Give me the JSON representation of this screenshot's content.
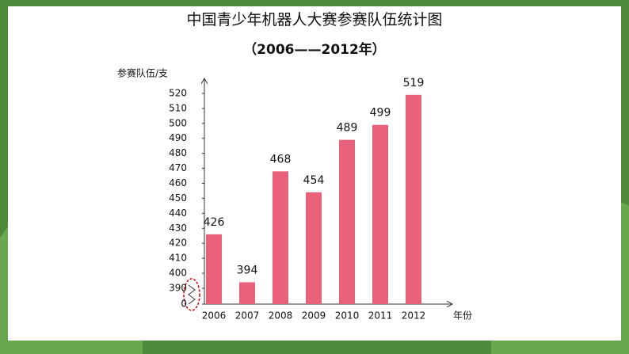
{
  "chart_data": {
    "type": "bar",
    "title": "中国青少年机器人大赛参赛队伍统计图",
    "subtitle": "（2006——2012年）",
    "y_label": "参赛队伍/支",
    "x_label": "年份",
    "categories": [
      "2006",
      "2007",
      "2008",
      "2009",
      "2010",
      "2011",
      "2012"
    ],
    "values": [
      426,
      394,
      468,
      454,
      489,
      499,
      519
    ],
    "color": "#e8607a",
    "ylim": [
      0,
      530
    ],
    "y_break": [
      0,
      390
    ],
    "yticks": [
      0,
      390,
      400,
      410,
      420,
      430,
      440,
      450,
      460,
      470,
      480,
      490,
      500,
      510,
      520
    ]
  }
}
